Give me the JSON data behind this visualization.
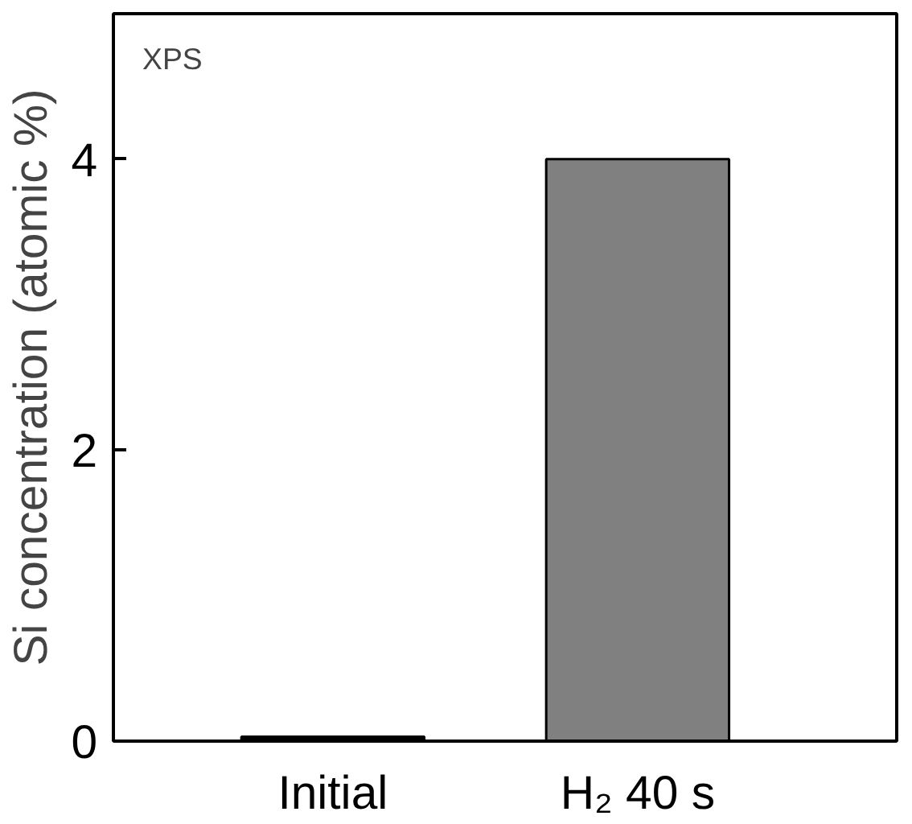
{
  "chart_data": {
    "type": "bar",
    "ylabel": "Si concentration (atomic %)",
    "categories": [
      "Initial",
      "H₂ 40 s"
    ],
    "values": [
      0.03,
      4.0
    ],
    "colors": [
      "#000000",
      "#808080"
    ],
    "ylim": [
      0,
      5
    ],
    "yticks": [
      0,
      2,
      4
    ],
    "grid": false,
    "annotations": [
      "XPS"
    ]
  }
}
